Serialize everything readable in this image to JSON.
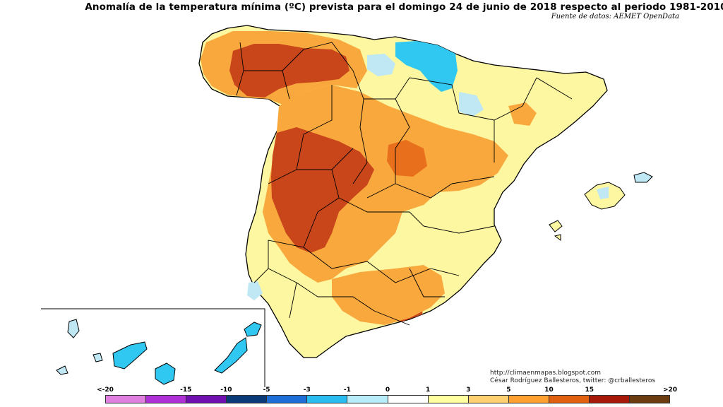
{
  "title": "Anomalía de la temperatura mínima (ºC) prevista para el domingo 24 de junio de 2018 respecto al periodo 1981-2010",
  "source": "Fuente de datos: AEMET OpenData",
  "credits": {
    "line1": "http://climaenmapas.blogspot.com",
    "line2": "César Rodríguez Ballesteros, twitter: @crballesteros"
  },
  "legend": {
    "ticks": [
      "<-20",
      "-15",
      "-10",
      "-5",
      "-3",
      "-1",
      "0",
      "1",
      "3",
      "5",
      "10",
      "15",
      ">20"
    ],
    "colors": [
      "#e07fe0",
      "#b030d8",
      "#7010b0",
      "#0a3a78",
      "#1e6ed8",
      "#28bcf0",
      "#b8ecf8",
      "#ffffff",
      "#ffffa0",
      "#ffd070",
      "#ffa030",
      "#e06010",
      "#a81808",
      "#6a3c10"
    ]
  },
  "map": {
    "colors": {
      "pale_yellow": "#fcf7a0",
      "orange": "#f9a83e",
      "dark_orange": "#e8701c",
      "red_brown": "#c8461a",
      "cyan": "#30c8f0",
      "light_cyan": "#bfe8f4",
      "border": "#000000"
    }
  }
}
